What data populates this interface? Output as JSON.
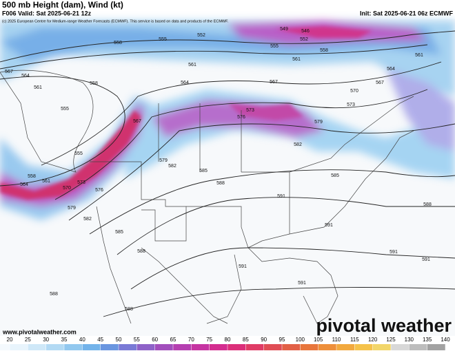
{
  "header": {
    "title": "500 mb Height (dam), Wind (kt)",
    "valid": "F006 Valid: Sat 2025-06-21 12z",
    "init": "Init: Sat 2025-06-21 06z ECMWF",
    "copyright": "(c) 2025 European Centre for Medium-range Weather Forecasts (ECMWF). This service is based on data and products of the ECMWF."
  },
  "map": {
    "contour_labels": [
      549,
      546,
      552,
      558,
      555,
      552,
      555,
      558,
      561,
      561,
      564,
      561,
      567,
      570,
      567,
      573,
      576,
      573,
      579,
      582,
      585,
      585,
      582,
      579,
      588,
      591,
      588,
      591,
      591,
      591,
      591,
      591,
      588,
      585,
      582,
      576,
      570,
      567,
      564,
      561,
      558,
      555,
      555,
      558,
      564,
      561,
      573,
      579,
      588,
      588,
      567,
      564
    ]
  },
  "footer": {
    "website": "www.pivotalweather.com",
    "logo": "pivotal weather"
  },
  "colorbar": {
    "ticks": [
      20,
      25,
      30,
      35,
      40,
      45,
      50,
      55,
      60,
      65,
      70,
      75,
      80,
      85,
      90,
      95,
      100,
      105,
      110,
      115,
      120,
      125,
      130,
      135,
      140
    ],
    "colors": [
      "#e8f4fc",
      "#cfe8f8",
      "#b3daf4",
      "#92c8ef",
      "#73b3ea",
      "#6a96e0",
      "#7a7ad6",
      "#8e62c8",
      "#a24ebc",
      "#b53fb0",
      "#c634a2",
      "#d42c8f",
      "#dc2f7a",
      "#e03c66",
      "#e04d55",
      "#e26046",
      "#e8763c",
      "#ee8f3a",
      "#f2a93e",
      "#f5c24a",
      "#f2d66a",
      "#d8d8d8",
      "#bdbdbd",
      "#a2a2a2"
    ]
  }
}
